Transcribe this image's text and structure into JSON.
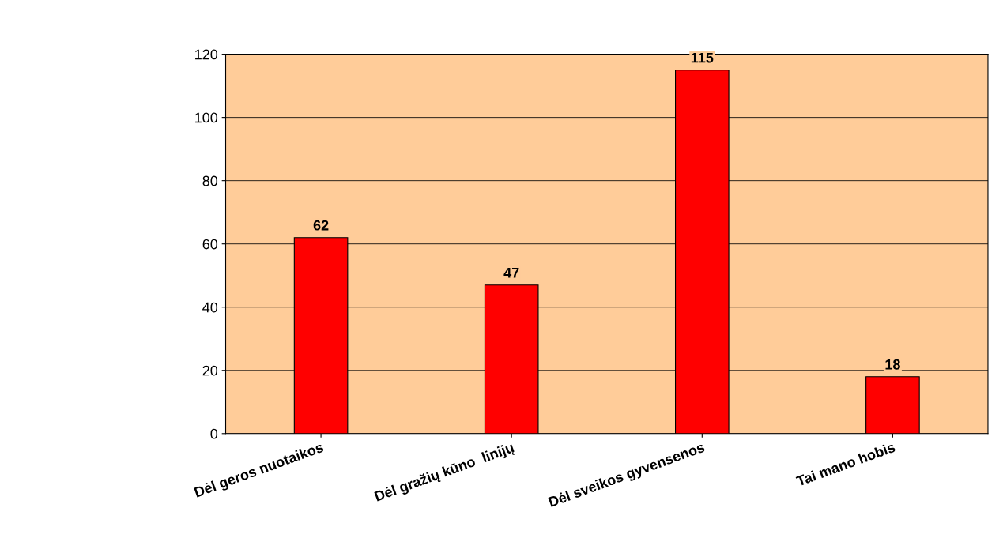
{
  "chart_data": {
    "type": "bar",
    "categories": [
      "Dėl geros nuotaikos",
      "Dėl gražių kūno  linijų",
      "Dėl sveikos gyvensenos",
      "Tai mano hobis"
    ],
    "values": [
      62,
      47,
      115,
      18
    ],
    "color": "#ff0000",
    "ylim": [
      0,
      120
    ],
    "yticks": [
      0,
      20,
      40,
      60,
      80,
      100,
      120
    ],
    "grid": "y",
    "data_labels": true
  }
}
